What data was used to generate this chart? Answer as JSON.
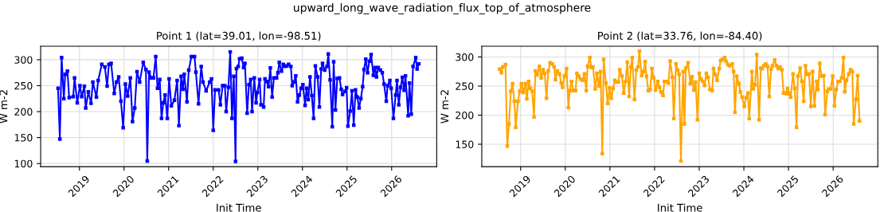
{
  "chart_data": [
    {
      "type": "line",
      "title": "Point 1 (lat=39.01, lon=-98.51)",
      "annotations": [
        "upward_long_wave_radiation_flux_top_of_atmosphere"
      ],
      "xlabel": "Init Time",
      "ylabel": "W m-2",
      "grid": true,
      "marker": "square",
      "line_style": "solid",
      "xlim": [
        2018.13,
        2027.01
      ],
      "xticks": [
        2019,
        2020,
        2021,
        2022,
        2023,
        2024,
        2025,
        2026
      ],
      "ylim": [
        94,
        326
      ],
      "yticks": [
        100,
        150,
        200,
        250,
        300
      ],
      "x": [
        2018.52,
        2018.56,
        2018.6,
        2018.65,
        2018.68,
        2018.73,
        2018.77,
        2018.86,
        2018.89,
        2018.95,
        2019.01,
        2019.05,
        2019.11,
        2019.14,
        2019.2,
        2019.26,
        2019.3,
        2019.38,
        2019.42,
        2019.5,
        2019.57,
        2019.62,
        2019.66,
        2019.71,
        2019.78,
        2019.83,
        2019.88,
        2019.93,
        2019.98,
        2020.03,
        2020.08,
        2020.14,
        2020.19,
        2020.24,
        2020.29,
        2020.35,
        2020.43,
        2020.49,
        2020.52,
        2020.56,
        2020.61,
        2020.66,
        2020.71,
        2020.75,
        2020.8,
        2020.84,
        2020.88,
        2020.92,
        2020.97,
        2021.01,
        2021.06,
        2021.13,
        2021.19,
        2021.23,
        2021.28,
        2021.32,
        2021.35,
        2021.41,
        2021.45,
        2021.51,
        2021.58,
        2021.61,
        2021.67,
        2021.73,
        2021.77,
        2021.84,
        2021.92,
        2021.96,
        2022.0,
        2022.04,
        2022.12,
        2022.16,
        2022.21,
        2022.26,
        2022.29,
        2022.34,
        2022.38,
        2022.42,
        2022.46,
        2022.5,
        2022.52,
        2022.56,
        2022.59,
        2022.64,
        2022.68,
        2022.71,
        2022.76,
        2022.8,
        2022.84,
        2022.87,
        2022.92,
        2022.96,
        2022.99,
        2023.04,
        2023.07,
        2023.13,
        2023.16,
        2023.2,
        2023.24,
        2023.28,
        2023.32,
        2023.36,
        2023.42,
        2023.45,
        2023.48,
        2023.53,
        2023.57,
        2023.61,
        2023.65,
        2023.69,
        2023.74,
        2023.77,
        2023.81,
        2023.85,
        2023.89,
        2023.93,
        2023.97,
        2024.01,
        2024.06,
        2024.09,
        2024.13,
        2024.17,
        2024.21,
        2024.25,
        2024.29,
        2024.34,
        2024.38,
        2024.42,
        2024.45,
        2024.5,
        2024.55,
        2024.58,
        2024.62,
        2024.67,
        2024.7,
        2024.74,
        2024.78,
        2024.83,
        2024.87,
        2024.9,
        2024.95,
        2024.99,
        2025.02,
        2025.07,
        2025.11,
        2025.15,
        2025.19,
        2025.23,
        2025.27,
        2025.31,
        2025.35,
        2025.38,
        2025.42,
        2025.46,
        2025.5,
        2025.54,
        2025.59,
        2025.63,
        2025.66,
        2025.7,
        2025.75,
        2025.79,
        2025.83,
        2025.88,
        2025.91,
        2025.96,
        2025.99,
        2026.04,
        2026.09,
        2026.12,
        2026.16,
        2026.2,
        2026.24,
        2026.28,
        2026.31,
        2026.37,
        2026.4,
        2026.44,
        2026.48,
        2026.54,
        2026.57,
        2026.61
      ],
      "series": [
        {
          "color": "#0000ff",
          "values": [
            245,
            147,
            304,
            225,
            272,
            278,
            227,
            229,
            265,
            217,
            250,
            229,
            249,
            207,
            238,
            216,
            257,
            228,
            260,
            291,
            286,
            249,
            291,
            293,
            235,
            257,
            267,
            220,
            169,
            253,
            230,
            265,
            181,
            207,
            277,
            257,
            295,
            281,
            105,
            276,
            265,
            265,
            306,
            245,
            262,
            187,
            217,
            232,
            187,
            263,
            211,
            222,
            260,
            173,
            268,
            243,
            272,
            219,
            280,
            306,
            306,
            276,
            215,
            287,
            257,
            240,
            257,
            263,
            164,
            242,
            242,
            213,
            250,
            250,
            200,
            247,
            315,
            187,
            268,
            104,
            283,
            287,
            302,
            303,
            285,
            293,
            197,
            252,
            262,
            200,
            265,
            217,
            237,
            262,
            213,
            209,
            263,
            258,
            248,
            284,
            228,
            265,
            265,
            275,
            295,
            278,
            291,
            287,
            288,
            291,
            287,
            250,
            257,
            269,
            219,
            232,
            245,
            252,
            212,
            245,
            223,
            267,
            231,
            187,
            288,
            267,
            209,
            282,
            293,
            280,
            287,
            311,
            261,
            171,
            296,
            203,
            264,
            265,
            243,
            233,
            239,
            246,
            172,
            201,
            240,
            174,
            242,
            228,
            207,
            225,
            248,
            281,
            301,
            275,
            297,
            310,
            270,
            285,
            267,
            285,
            280,
            275,
            253,
            220,
            250,
            260,
            245,
            187,
            232,
            260,
            213,
            247,
            266,
            241,
            269,
            192,
            255,
            195,
            287,
            304,
            282,
            292
          ]
        }
      ]
    },
    {
      "type": "line",
      "title": "Point 2 (lat=33.76, lon=-84.40)",
      "xlabel": "Init Time",
      "ylabel": "W m-2",
      "grid": true,
      "marker": "square",
      "line_style": "solid",
      "xlim": [
        2018.13,
        2027.0
      ],
      "xticks": [
        2019,
        2020,
        2021,
        2022,
        2023,
        2024,
        2025,
        2026
      ],
      "ylim": [
        111.5,
        318.5
      ],
      "yticks": [
        150,
        200,
        250,
        300
      ],
      "x": [
        2018.53,
        2018.57,
        2018.6,
        2018.66,
        2018.7,
        2018.74,
        2018.78,
        2018.82,
        2018.86,
        2018.89,
        2018.94,
        2018.98,
        2019.02,
        2019.06,
        2019.11,
        2019.14,
        2019.18,
        2019.22,
        2019.26,
        2019.3,
        2019.33,
        2019.37,
        2019.42,
        2019.46,
        2019.5,
        2019.54,
        2019.58,
        2019.62,
        2019.66,
        2019.71,
        2019.75,
        2019.78,
        2019.82,
        2019.87,
        2019.91,
        2019.94,
        2019.98,
        2020.03,
        2020.07,
        2020.1,
        2020.14,
        2020.18,
        2020.23,
        2020.26,
        2020.3,
        2020.34,
        2020.39,
        2020.43,
        2020.47,
        2020.5,
        2020.55,
        2020.58,
        2020.62,
        2020.67,
        2020.71,
        2020.75,
        2020.79,
        2020.83,
        2020.86,
        2020.91,
        2020.95,
        2020.99,
        2021.03,
        2021.07,
        2021.11,
        2021.15,
        2021.19,
        2021.22,
        2021.27,
        2021.31,
        2021.35,
        2021.39,
        2021.43,
        2021.47,
        2021.5,
        2021.55,
        2021.59,
        2021.63,
        2021.66,
        2021.71,
        2021.75,
        2021.79,
        2021.82,
        2021.86,
        2021.9,
        2021.94,
        2021.98,
        2022.02,
        2022.07,
        2022.11,
        2022.14,
        2022.19,
        2022.22,
        2022.27,
        2022.31,
        2022.35,
        2022.4,
        2022.43,
        2022.48,
        2022.52,
        2022.55,
        2022.59,
        2022.64,
        2022.67,
        2022.7,
        2022.75,
        2022.8,
        2022.84,
        2022.88,
        2022.92,
        2022.96,
        2023.0,
        2023.04,
        2023.08,
        2023.12,
        2023.16,
        2023.2,
        2023.24,
        2023.29,
        2023.32,
        2023.36,
        2023.4,
        2023.45,
        2023.48,
        2023.52,
        2023.57,
        2023.6,
        2023.64,
        2023.68,
        2023.74,
        2023.77,
        2023.8,
        2023.84,
        2023.89,
        2023.92,
        2023.96,
        2024.01,
        2024.05,
        2024.09,
        2024.12,
        2024.18,
        2024.21,
        2024.25,
        2024.29,
        2024.34,
        2024.38,
        2024.41,
        2024.45,
        2024.49,
        2024.53,
        2024.57,
        2024.61,
        2024.64,
        2024.69,
        2024.73,
        2024.77,
        2024.81,
        2024.85,
        2024.89,
        2024.92,
        2024.95,
        2024.98,
        2025.02,
        2025.05,
        2025.1,
        2025.14,
        2025.18,
        2025.21,
        2025.26,
        2025.3,
        2025.34,
        2025.38,
        2025.42,
        2025.46,
        2025.5,
        2025.54,
        2025.58,
        2025.63,
        2025.66,
        2025.7,
        2025.74,
        2025.79,
        2025.82,
        2025.87,
        2025.9,
        2025.94,
        2025.99,
        2026.03,
        2026.07,
        2026.11,
        2026.15,
        2026.19,
        2026.23,
        2026.26,
        2026.3,
        2026.35,
        2026.39,
        2026.43,
        2026.46,
        2026.51,
        2026.55,
        2026.59
      ],
      "series": [
        {
          "color": "#ffa500",
          "values": [
            279,
            273,
            283,
            287,
            147,
            185,
            241,
            254,
            224,
            179,
            224,
            241,
            254,
            239,
            254,
            228,
            258,
            246,
            241,
            197,
            276,
            269,
            284,
            264,
            278,
            272,
            229,
            276,
            290,
            288,
            283,
            261,
            276,
            271,
            255,
            248,
            267,
            280,
            213,
            242,
            258,
            242,
            242,
            272,
            267,
            262,
            260,
            271,
            242,
            284,
            299,
            282,
            283,
            245,
            272,
            250,
            275,
            134,
            296,
            255,
            220,
            247,
            229,
            246,
            260,
            257,
            257,
            278,
            267,
            238,
            258,
            291,
            232,
            283,
            299,
            227,
            278,
            283,
            310,
            268,
            275,
            292,
            267,
            242,
            244,
            280,
            264,
            243,
            258,
            248,
            240,
            234,
            258,
            258,
            255,
            293,
            265,
            194,
            288,
            277,
            270,
            121,
            275,
            185,
            281,
            290,
            254,
            266,
            243,
            257,
            192,
            272,
            262,
            258,
            251,
            272,
            265,
            244,
            242,
            280,
            270,
            260,
            280,
            294,
            296,
            299,
            293,
            287,
            285,
            288,
            275,
            205,
            267,
            254,
            240,
            231,
            215,
            230,
            238,
            194,
            275,
            245,
            252,
            304,
            192,
            281,
            280,
            285,
            288,
            284,
            232,
            279,
            285,
            295,
            285,
            280,
            283,
            278,
            238,
            238,
            237,
            246,
            237,
            231,
            271,
            246,
            179,
            267,
            281,
            258,
            224,
            285,
            270,
            271,
            215,
            275,
            216,
            258,
            244,
            289,
            267,
            268,
            201,
            241,
            245,
            245,
            267,
            216,
            244,
            258,
            258,
            264,
            299,
            240,
            260,
            271,
            278,
            275,
            185,
            227,
            268,
            190
          ]
        }
      ]
    }
  ]
}
